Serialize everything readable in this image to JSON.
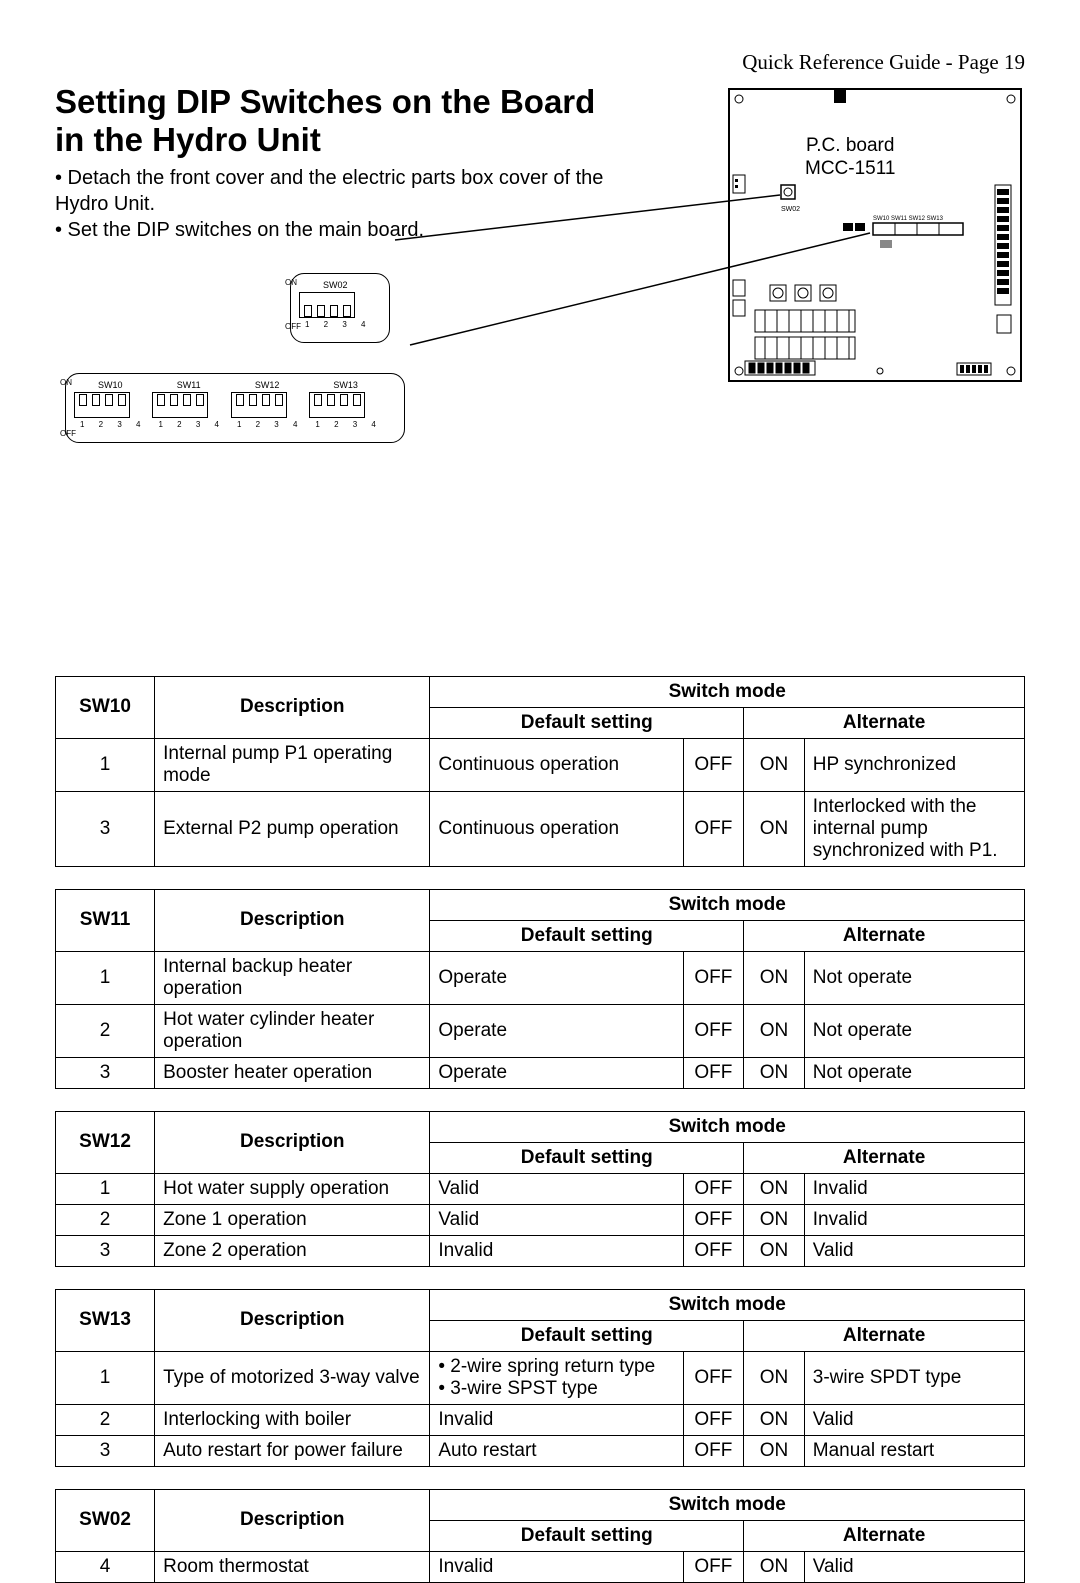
{
  "header": "Quick Reference Guide  -  Page 19",
  "title_line1": "Setting DIP Switches on the Board",
  "title_line2": "in the Hydro Unit",
  "instr1": "• Detach the front cover and the electric parts box cover of the Hydro Unit.",
  "instr2": "• Set the DIP switches on the main board.",
  "board_label_line1": "P.C. board",
  "board_label_line2": "MCC-1511",
  "dip_labels": {
    "sw02": "SW02",
    "sw10": "SW10",
    "sw11": "SW11",
    "sw12": "SW12",
    "sw13": "SW13",
    "on": "ON",
    "off": "OFF",
    "nums": "1  2  3  4"
  },
  "headers": {
    "description": "Description",
    "switch_mode": "Switch mode",
    "default_setting": "Default setting",
    "alternate": "Alternate"
  },
  "tables": [
    {
      "sw": "SW10",
      "rows": [
        {
          "n": "1",
          "desc": "Internal pump P1 operating mode",
          "def": "Continuous operation",
          "off": "OFF",
          "on": "ON",
          "alt": "HP synchronized"
        },
        {
          "n": "3",
          "desc": "External P2 pump operation",
          "def": "Continuous operation",
          "off": "OFF",
          "on": "ON",
          "alt": "Interlocked with the internal pump synchronized with P1."
        }
      ]
    },
    {
      "sw": "SW11",
      "rows": [
        {
          "n": "1",
          "desc": "Internal backup heater operation",
          "def": "Operate",
          "off": "OFF",
          "on": "ON",
          "alt": "Not operate"
        },
        {
          "n": "2",
          "desc": "Hot water cylinder heater operation",
          "def": "Operate",
          "off": "OFF",
          "on": "ON",
          "alt": "Not operate"
        },
        {
          "n": "3",
          "desc": "Booster heater operation",
          "def": "Operate",
          "off": "OFF",
          "on": "ON",
          "alt": "Not operate"
        }
      ]
    },
    {
      "sw": "SW12",
      "rows": [
        {
          "n": "1",
          "desc": "Hot water supply operation",
          "def": "Valid",
          "off": "OFF",
          "on": "ON",
          "alt": "Invalid"
        },
        {
          "n": "2",
          "desc": "Zone 1 operation",
          "def": "Valid",
          "off": "OFF",
          "on": "ON",
          "alt": "Invalid"
        },
        {
          "n": "3",
          "desc": "Zone 2 operation",
          "def": "Invalid",
          "off": "OFF",
          "on": "ON",
          "alt": "Valid"
        }
      ]
    },
    {
      "sw": "SW13",
      "rows": [
        {
          "n": "1",
          "desc": "Type of motorized 3-way valve",
          "def": "• 2-wire spring return type\n• 3-wire SPST type",
          "off": "OFF",
          "on": "ON",
          "alt": "3-wire SPDT type"
        },
        {
          "n": "2",
          "desc": "Interlocking with boiler",
          "def": "Invalid",
          "off": "OFF",
          "on": "ON",
          "alt": "Valid"
        },
        {
          "n": "3",
          "desc": "Auto restart for power failure",
          "def": "Auto restart",
          "off": "OFF",
          "on": "ON",
          "alt": "Manual restart"
        }
      ]
    },
    {
      "sw": "SW02",
      "rows": [
        {
          "n": "4",
          "desc": "Room thermostat",
          "def": "Invalid",
          "off": "OFF",
          "on": "ON",
          "alt": "Valid"
        }
      ]
    }
  ],
  "colors": {
    "text": "#000000",
    "bg": "#ffffff",
    "border": "#000000"
  }
}
